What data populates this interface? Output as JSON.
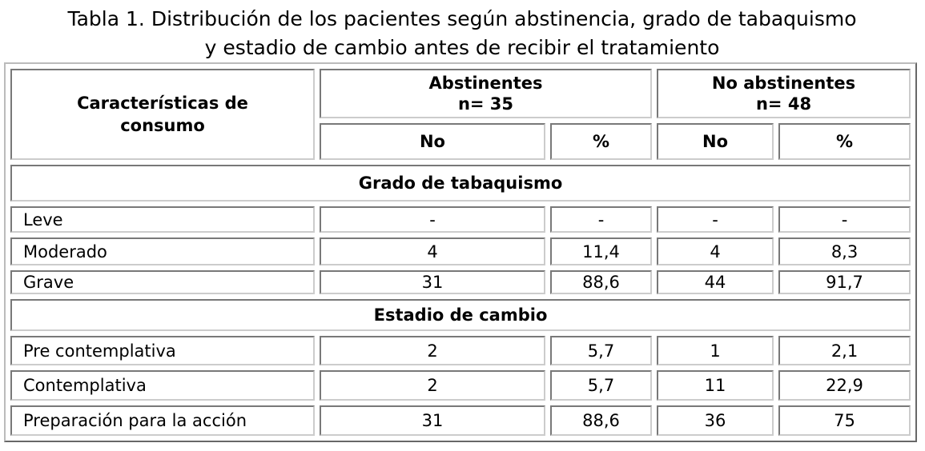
{
  "title": "Tabla 1. Distribución de los pacientes según abstinencia, grado de tabaquismo y estadio de cambio antes de recibir el tratamiento",
  "table": {
    "header": {
      "characteristic": "Características de consumo",
      "groups": [
        {
          "name": "Abstinentes",
          "n": "n= 35"
        },
        {
          "name": "No abstinentes",
          "n": "n= 48"
        }
      ],
      "subheaders": [
        "No",
        "%",
        "No",
        "%"
      ]
    },
    "sections": [
      {
        "title": "Grado de tabaquismo",
        "rows": [
          [
            "Leve",
            "-",
            "-",
            "-",
            "-"
          ],
          [
            "Moderado",
            "4",
            "11,4",
            "4",
            "8,3"
          ],
          [
            "Grave",
            "31",
            "88,6",
            "44",
            "91,7"
          ]
        ]
      },
      {
        "title": "Estadio de cambio",
        "rows": [
          [
            "Pre contemplativa",
            "2",
            "5,7",
            "1",
            "2,1"
          ],
          [
            "Contemplativa",
            "2",
            "5,7",
            "11",
            "22,9"
          ],
          [
            "Preparación para la acción",
            "31",
            "88,6",
            "36",
            "75"
          ]
        ]
      }
    ]
  }
}
